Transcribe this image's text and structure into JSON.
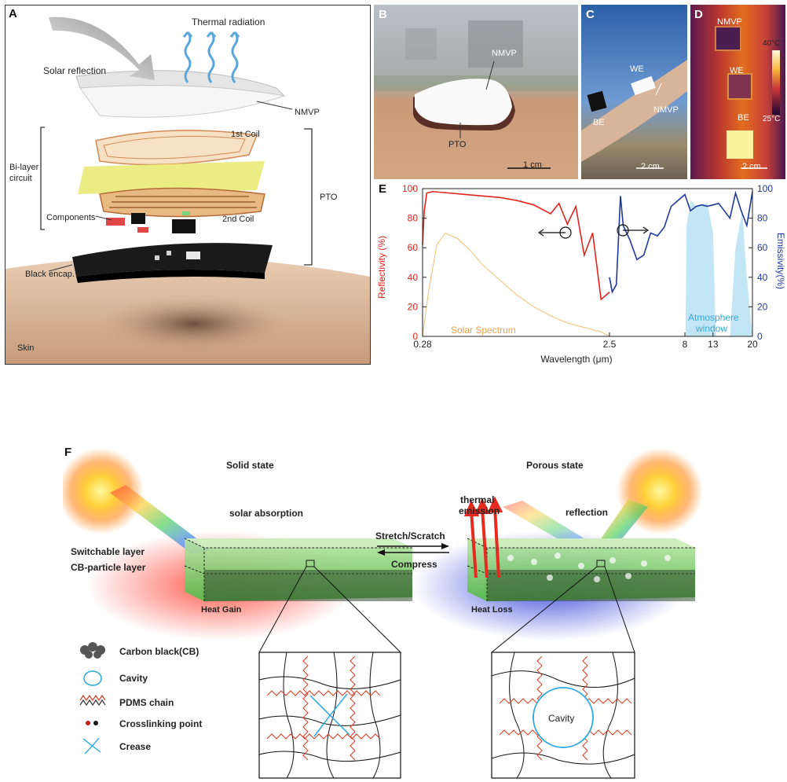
{
  "panel_a": {
    "letter": "A",
    "labels": {
      "thermal_radiation": "Thermal radiation",
      "solar_reflection": "Solar reflection",
      "nmvp": "NMVP",
      "first_coil": "1st Coil",
      "bilayer_circuit_1": "Bi-layer",
      "bilayer_circuit_2": "circuit",
      "pto": "PTO",
      "components": "Components",
      "second_coil": "2nd Coil",
      "black_encap": "Black encap.",
      "skin": "Skin"
    }
  },
  "panel_b": {
    "letter": "B",
    "labels": {
      "nmvp": "NMVP",
      "pto": "PTO",
      "scale": "1 cm"
    }
  },
  "panel_c": {
    "letter": "C",
    "labels": {
      "we": "WE",
      "be": "BE",
      "nmvp": "NMVP",
      "scale": "2 cm"
    }
  },
  "panel_d": {
    "letter": "D",
    "labels": {
      "nmvp": "NMVP",
      "we": "WE",
      "be": "BE",
      "scale": "2 cm",
      "temp_high": "40°C",
      "temp_low": "25°C"
    }
  },
  "panel_e": {
    "letter": "E"
  },
  "chart_data": {
    "type": "line",
    "xlabel": "Wavelength (μm)",
    "ylabel": "Reflectivity (%)",
    "ylabel_right": "Emissivity(%)",
    "x_ticks": [
      "0.28",
      "2.5",
      "8",
      "13",
      "20"
    ],
    "y_ticks": [
      0,
      20,
      40,
      60,
      80,
      100
    ],
    "ylim": [
      0,
      100
    ],
    "annotations": [
      "Solar Spectrum",
      "Atmosphere window"
    ],
    "colors": {
      "reflectivity": "#e3241b",
      "emissivity": "#1f3a9c",
      "solar": "#f2c88a",
      "atmosphere": "#a9dcf2"
    },
    "series": [
      {
        "name": "Reflectivity (%)",
        "x": [
          0.28,
          0.3,
          0.33,
          0.4,
          0.6,
          0.8,
          1.0,
          1.2,
          1.4,
          1.6,
          1.8,
          1.9,
          2.0,
          2.1,
          2.2,
          2.3,
          2.4,
          2.5
        ],
        "y": [
          62,
          85,
          97,
          98,
          97,
          96,
          95,
          94,
          92,
          89,
          83,
          90,
          76,
          88,
          55,
          70,
          25,
          30
        ]
      },
      {
        "name": "Emissivity(%)",
        "x": [
          2.5,
          2.7,
          3.0,
          3.3,
          3.5,
          4.0,
          4.5,
          5.0,
          5.5,
          6.0,
          6.5,
          7.0,
          7.5,
          8.0,
          9.0,
          10,
          11,
          12,
          13,
          14,
          15,
          16,
          17,
          18,
          19,
          20
        ],
        "y": [
          40,
          30,
          35,
          95,
          75,
          65,
          52,
          55,
          70,
          68,
          74,
          88,
          92,
          96,
          85,
          88,
          89,
          88,
          89,
          90,
          85,
          80,
          97,
          85,
          75,
          98
        ]
      }
    ]
  },
  "panel_f": {
    "letter": "F",
    "solid_state": "Solid state",
    "porous_state": "Porous state",
    "solar_absorption": "solar absorption",
    "thermal_emission_1": "thermal",
    "thermal_emission_2": "emission",
    "reflection": "reflection",
    "stretch_scratch": "Stretch/Scratch",
    "compress": "Compress",
    "switchable_layer": "Switchable layer",
    "cb_particle_layer": "CB-particle layer",
    "heat_gain": "Heat Gain",
    "heat_loss": "Heat Loss",
    "cavity_label": "Cavity",
    "legend": [
      {
        "icon": "carbon-black-icon",
        "label": "Carbon black(CB)"
      },
      {
        "icon": "cavity-icon",
        "label": "Cavity"
      },
      {
        "icon": "pdms-chain-icon",
        "label": "PDMS chain"
      },
      {
        "icon": "crosslinking-point-icon",
        "label": "Crosslinking point"
      },
      {
        "icon": "crease-icon",
        "label": "Crease"
      }
    ]
  }
}
